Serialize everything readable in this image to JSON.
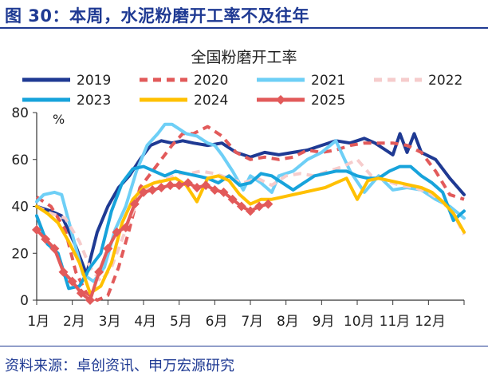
{
  "figure_title": "图 30：本周，水泥粉磨开工率不及往年",
  "source": "资料来源：卓创资讯、申万宏源研究",
  "chart_data": {
    "type": "line",
    "title": "全国粉磨开工率",
    "unit": "%",
    "x_labels": [
      "1月",
      "2月",
      "3月",
      "4月",
      "5月",
      "6月",
      "7月",
      "8月",
      "9月",
      "10月",
      "11月",
      "12月"
    ],
    "x_domain": [
      1,
      13
    ],
    "ylim": [
      0,
      80
    ],
    "yticks": [
      0,
      20,
      40,
      60,
      80
    ],
    "legend_position": "top",
    "series": [
      {
        "name": "2019",
        "color": "#1f3a93",
        "dash": "solid",
        "marker": "none",
        "x": [
          1.0,
          1.4,
          1.7,
          2.1,
          2.4,
          2.7,
          3.0,
          3.3,
          3.6,
          3.9,
          4.2,
          4.5,
          4.8,
          5.1,
          5.4,
          5.8,
          6.2,
          6.6,
          7.0,
          7.4,
          7.8,
          8.2,
          8.6,
          9.0,
          9.4,
          9.8,
          10.2,
          10.5,
          10.8,
          11.0,
          11.2,
          11.4,
          11.6,
          11.8,
          12.2,
          12.6,
          13.0
        ],
        "y": [
          40,
          38,
          36,
          23,
          11,
          29,
          40,
          48,
          53,
          60,
          66,
          68,
          67,
          68,
          67,
          66,
          67,
          63,
          61,
          63,
          62,
          63,
          64,
          66,
          68,
          67,
          69,
          67,
          64,
          62,
          71,
          63,
          71,
          63,
          60,
          52,
          45
        ]
      },
      {
        "name": "2020",
        "color": "#e25a5a",
        "dash": "dashed",
        "marker": "none",
        "x": [
          1.0,
          1.4,
          1.8,
          2.1,
          2.4,
          2.7,
          3.0,
          3.3,
          3.6,
          3.9,
          4.2,
          4.5,
          4.8,
          5.1,
          5.4,
          5.8,
          6.2,
          6.6,
          7.0,
          7.4,
          7.8,
          8.2,
          8.6,
          9.0,
          9.4,
          9.8,
          10.2,
          10.6,
          11.0,
          11.4,
          11.8,
          12.2,
          12.6,
          13.0
        ],
        "y": [
          44,
          40,
          30,
          12,
          3,
          0,
          2,
          14,
          30,
          48,
          54,
          60,
          66,
          71,
          71,
          74,
          70,
          63,
          60,
          61,
          60,
          61,
          64,
          63,
          64,
          66,
          67,
          67,
          67,
          66,
          63,
          55,
          45,
          43
        ]
      },
      {
        "name": "2021",
        "color": "#6ecff6",
        "dash": "solid",
        "marker": "none",
        "x": [
          1.0,
          1.2,
          1.5,
          1.7,
          2.0,
          2.3,
          2.6,
          2.9,
          3.2,
          3.5,
          3.8,
          4.1,
          4.4,
          4.6,
          4.8,
          5.0,
          5.2,
          5.5,
          5.8,
          6.0,
          6.2,
          6.5,
          6.8,
          7.0,
          7.3,
          7.6,
          7.8,
          8.2,
          8.6,
          9.0,
          9.4,
          9.8,
          10.2,
          10.6,
          11.0,
          11.4,
          11.8,
          12.2,
          12.6,
          13.0
        ],
        "y": [
          42,
          45,
          46,
          45,
          28,
          11,
          8,
          14,
          30,
          40,
          55,
          66,
          71,
          75,
          75,
          73,
          71,
          70,
          67,
          66,
          62,
          55,
          47,
          53,
          50,
          46,
          53,
          55,
          60,
          63,
          68,
          55,
          46,
          53,
          47,
          48,
          47,
          43,
          40,
          35
        ]
      },
      {
        "name": "2022",
        "color": "#f6cccc",
        "dash": "dashed",
        "marker": "none",
        "x": [
          1.0,
          1.4,
          1.8,
          2.2,
          2.5,
          2.8,
          3.1,
          3.5,
          3.9,
          4.3,
          4.7,
          5.0,
          5.3,
          5.6,
          6.0,
          6.4,
          6.8,
          7.2,
          7.6,
          8.0,
          8.4,
          8.8,
          9.2,
          9.6,
          10.0,
          10.4,
          10.8,
          11.2,
          11.6,
          12.0,
          12.4,
          12.8,
          13.0
        ],
        "y": [
          40,
          37,
          35,
          25,
          14,
          8,
          14,
          30,
          45,
          50,
          52,
          54,
          54,
          55,
          54,
          52,
          50,
          52,
          49,
          53,
          54,
          53,
          55,
          57,
          60,
          53,
          51,
          49,
          48,
          46,
          42,
          34,
          28
        ]
      },
      {
        "name": "2023",
        "color": "#17a3db",
        "dash": "solid",
        "marker": "none",
        "x": [
          1.0,
          1.3,
          1.6,
          1.9,
          2.2,
          2.5,
          2.8,
          3.1,
          3.4,
          3.7,
          4.0,
          4.3,
          4.6,
          4.9,
          5.2,
          5.5,
          5.8,
          6.1,
          6.4,
          6.7,
          7.0,
          7.3,
          7.6,
          7.9,
          8.2,
          8.5,
          8.8,
          9.1,
          9.4,
          9.7,
          10.0,
          10.3,
          10.6,
          10.9,
          11.2,
          11.5,
          11.8,
          12.1,
          12.4,
          12.7,
          13.0
        ],
        "y": [
          36,
          24,
          20,
          5,
          6,
          14,
          20,
          38,
          50,
          56,
          57,
          55,
          53,
          55,
          54,
          53,
          52,
          50,
          53,
          49,
          50,
          54,
          53,
          50,
          47,
          50,
          53,
          54,
          55,
          55,
          53,
          52,
          52,
          55,
          57,
          57,
          53,
          50,
          46,
          34,
          38
        ]
      },
      {
        "name": "2024",
        "color": "#ffc000",
        "dash": "solid",
        "marker": "none",
        "x": [
          1.0,
          1.3,
          1.6,
          1.9,
          2.2,
          2.5,
          2.8,
          3.1,
          3.4,
          3.7,
          4.0,
          4.3,
          4.6,
          4.9,
          5.2,
          5.5,
          5.8,
          6.1,
          6.4,
          6.7,
          7.0,
          7.3,
          7.6,
          7.9,
          8.2,
          8.5,
          8.8,
          9.1,
          9.4,
          9.7,
          10.0,
          10.3,
          10.6,
          10.9,
          11.2,
          11.5,
          11.8,
          12.1,
          12.4,
          12.7,
          13.0
        ],
        "y": [
          40,
          37,
          33,
          25,
          16,
          3,
          6,
          16,
          33,
          43,
          48,
          50,
          51,
          52,
          49,
          42,
          52,
          53,
          51,
          45,
          41,
          43,
          43,
          44,
          45,
          46,
          47,
          48,
          50,
          52,
          43,
          51,
          52,
          51,
          50,
          49,
          48,
          46,
          42,
          37,
          29
        ]
      },
      {
        "name": "2025",
        "color": "#e25a5a",
        "dash": "solid",
        "marker": "diamond",
        "x": [
          1.0,
          1.25,
          1.5,
          1.75,
          2.0,
          2.25,
          2.5,
          2.75,
          3.0,
          3.25,
          3.5,
          3.75,
          4.0,
          4.25,
          4.5,
          4.75,
          5.0,
          5.25,
          5.5,
          5.75,
          6.0,
          6.25,
          6.5,
          6.75,
          7.0,
          7.25,
          7.5
        ],
        "y": [
          30,
          26,
          22,
          12,
          8,
          3,
          0,
          12,
          22,
          29,
          31,
          41,
          46,
          47,
          48,
          49,
          49,
          50,
          48,
          49,
          47,
          46,
          43,
          40,
          38,
          40,
          41
        ]
      }
    ]
  }
}
